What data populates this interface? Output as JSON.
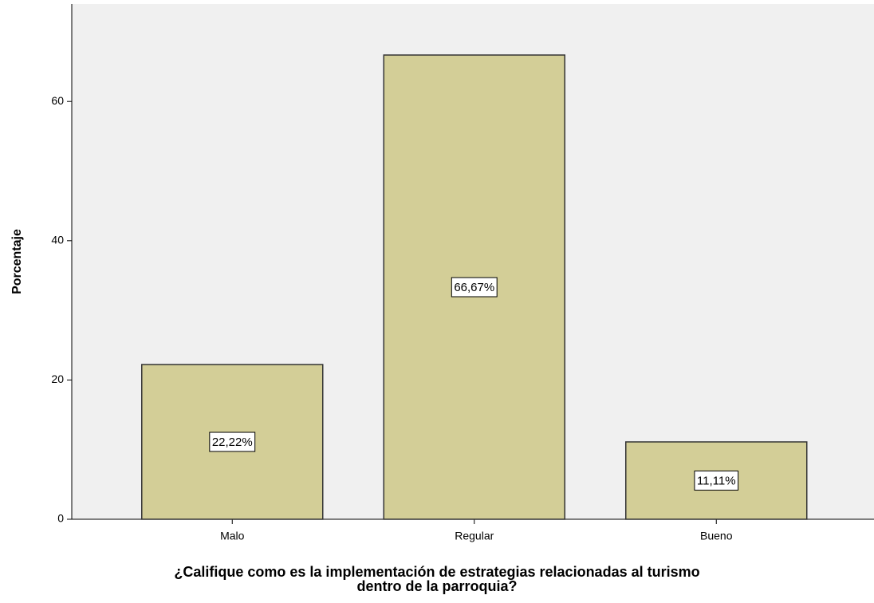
{
  "chart_data": {
    "type": "bar",
    "ylabel": "Porcentaje",
    "xlabel": [
      "¿Califique como es la implementación de estrategias relacionadas al turismo",
      "dentro de la parroquia?"
    ],
    "categories": [
      "Malo",
      "Regular",
      "Bueno"
    ],
    "values": [
      22.22,
      66.67,
      11.11
    ],
    "value_labels": [
      "22,22%",
      "66,67%",
      "11,11%"
    ],
    "color": "#d3ce97",
    "ylim": [
      0,
      74
    ],
    "yticks": [
      0,
      20,
      40,
      60
    ],
    "grid": false
  }
}
